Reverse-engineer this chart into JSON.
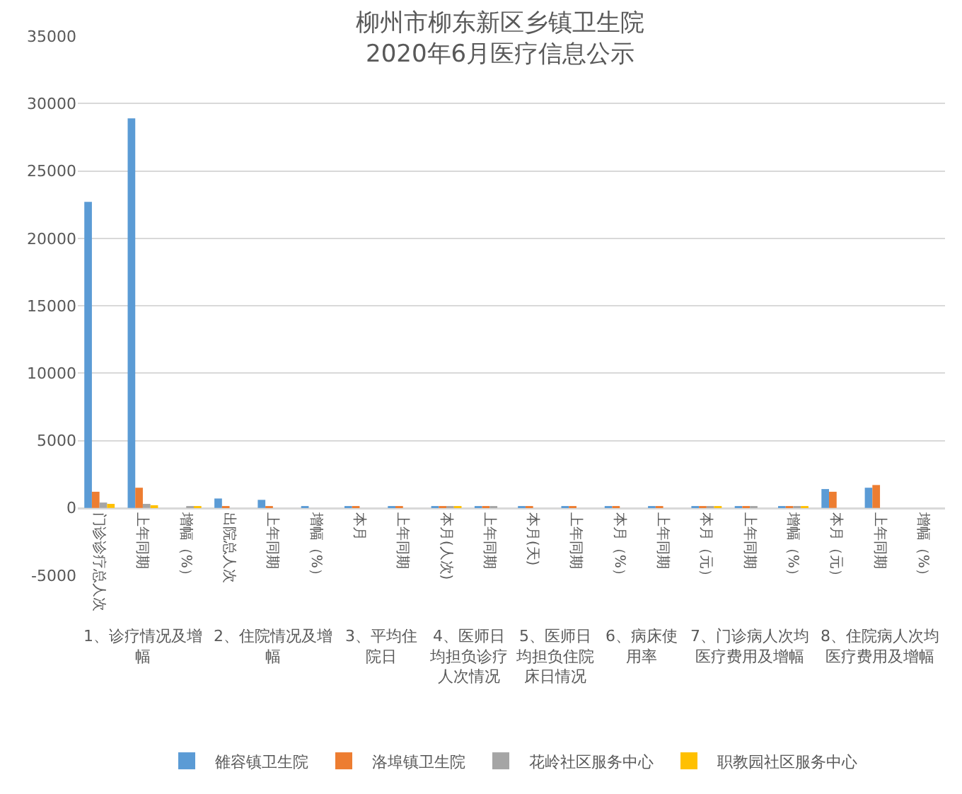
{
  "chart_data": {
    "type": "bar",
    "title": "柳州市柳东新区乡镇卫生院\n2020年6月医疗信息公示",
    "categories": [
      "门诊诊疗总人次",
      "上年同期",
      "增幅（%）",
      "出院总人次",
      "上年同期",
      "增幅（%）",
      "本月",
      "上年同期",
      "本月(人次)",
      "上年同期",
      "本月(天)",
      "上年同期",
      "本月（%）",
      "上年同期",
      "本月（元）",
      "上年同期",
      "增幅（%）",
      "本月（元）",
      "上年同期",
      "增幅（%）"
    ],
    "annotations": [
      "1、诊疗情况及增幅",
      "2、住院情况及增幅",
      "3、平均住院日",
      "4、医师日均担负诊疗人次情况",
      "5、医师日均担负住院床日情况",
      "6、病床使用率",
      "7、门诊病人次均医疗费用及增幅",
      "8、住院病人次均医疗费用及增幅"
    ],
    "series": [
      {
        "name": "雒容镇卫生院",
        "color": "#5b9bd5",
        "values": [
          22700,
          28900,
          null,
          700,
          600,
          100,
          100,
          100,
          100,
          100,
          100,
          100,
          100,
          100,
          100,
          100,
          100,
          1400,
          1500,
          null
        ]
      },
      {
        "name": "洛埠镇卫生院",
        "color": "#ed7d31",
        "values": [
          1200,
          1500,
          null,
          100,
          100,
          null,
          100,
          100,
          100,
          100,
          100,
          100,
          100,
          100,
          100,
          100,
          100,
          1200,
          1700,
          null
        ]
      },
      {
        "name": "花岭社区服务中心",
        "color": "#a5a5a5",
        "values": [
          400,
          300,
          100,
          null,
          null,
          null,
          null,
          null,
          100,
          100,
          null,
          null,
          null,
          null,
          100,
          100,
          100,
          null,
          null,
          null
        ]
      },
      {
        "name": "职教园社区服务中心",
        "color": "#ffc000",
        "values": [
          300,
          200,
          100,
          null,
          null,
          null,
          null,
          null,
          100,
          null,
          null,
          null,
          null,
          null,
          100,
          null,
          100,
          null,
          null,
          null
        ]
      }
    ],
    "ylim": [
      -5000,
      35000
    ],
    "yticks": [
      -5000,
      0,
      5000,
      10000,
      15000,
      20000,
      25000,
      30000,
      35000
    ],
    "grid": "y",
    "legend": "bottom"
  }
}
